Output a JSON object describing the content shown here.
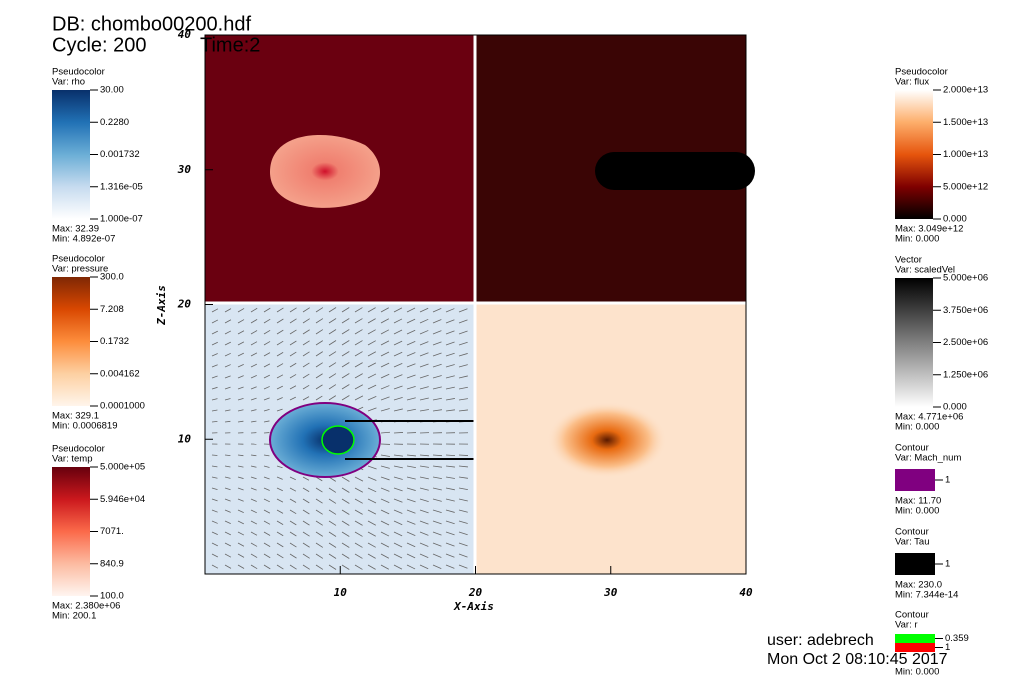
{
  "header": {
    "db": "DB: chombo00200.hdf",
    "cycle": "Cycle: 200",
    "time": "Time:2"
  },
  "plot": {
    "xlabel": "X-Axis",
    "ylabel": "Z-Axis",
    "xlim": [
      0,
      40
    ],
    "ylim": [
      0,
      40
    ],
    "xticks": [
      10,
      20,
      30,
      40
    ],
    "yticks": [
      10,
      20,
      30,
      40
    ]
  },
  "legends": [
    {
      "plot": "Pseudocolor",
      "var": "Var: rho",
      "colors": [
        "#08306b",
        "#2171b5",
        "#6baed6",
        "#c6dbef",
        "#ffffff"
      ],
      "labels": [
        "30.00",
        "0.2280",
        "0.001732",
        "1.316e-05",
        "1.000e-07"
      ],
      "max": "Max:  32.39",
      "min": "Min:  4.892e-07"
    },
    {
      "plot": "Pseudocolor",
      "var": "Var: pressure",
      "colors": [
        "#7f2704",
        "#d94801",
        "#fd8d3c",
        "#fdd0a2",
        "#fff5eb"
      ],
      "labels": [
        "300.0",
        "7.208",
        "0.1732",
        "0.004162",
        "0.0001000"
      ],
      "max": "Max:  329.1",
      "min": "Min:  0.0006819"
    },
    {
      "plot": "Pseudocolor",
      "var": "Var: temp",
      "colors": [
        "#67000d",
        "#cb181d",
        "#fb6a4a",
        "#fcbba1",
        "#fff5f0"
      ],
      "labels": [
        "5.000e+05",
        "5.946e+04",
        "7071.",
        "840.9",
        "100.0"
      ],
      "max": "Max:  2.380e+06",
      "min": "Min:  200.1"
    },
    {
      "plot": "Pseudocolor",
      "var": "Var: flux",
      "colors": [
        "#ffffff",
        "#fdae6b",
        "#e6550d",
        "#7f0000",
        "#000000"
      ],
      "labels": [
        "2.000e+13",
        "1.500e+13",
        "1.000e+13",
        "5.000e+12",
        "0.000"
      ],
      "max": "Max:  3.049e+12",
      "min": "Min:  0.000"
    },
    {
      "plot": "Vector",
      "var": "Var: scaledVel",
      "colors": [
        "#000000",
        "#555555",
        "#aaaaaa",
        "#ffffff"
      ],
      "labels": [
        "5.000e+06",
        "3.750e+06",
        "2.500e+06",
        "1.250e+06",
        "0.000"
      ],
      "max": "Max:  4.771e+06",
      "min": "Min:  0.000"
    },
    {
      "plot": "Contour",
      "var": "Var: Mach_num",
      "swatches": [
        {
          "color": "#800080",
          "label": "1"
        }
      ],
      "max": "Max:  11.70",
      "min": "Min:  0.000"
    },
    {
      "plot": "Contour",
      "var": "Var: Tau",
      "swatches": [
        {
          "color": "#000000",
          "label": "1"
        }
      ],
      "max": "Max:  230.0",
      "min": "Min:  7.344e-14"
    },
    {
      "plot": "Contour",
      "var": "Var: r",
      "swatches": [
        {
          "color": "#00ff00",
          "label": "0.359"
        },
        {
          "color": "#ff0000",
          "label": "1"
        }
      ],
      "min": "Min:  0.000"
    }
  ],
  "footer": {
    "user": "user: adebrech",
    "date": "Mon Oct  2 08:10:45 2017"
  }
}
